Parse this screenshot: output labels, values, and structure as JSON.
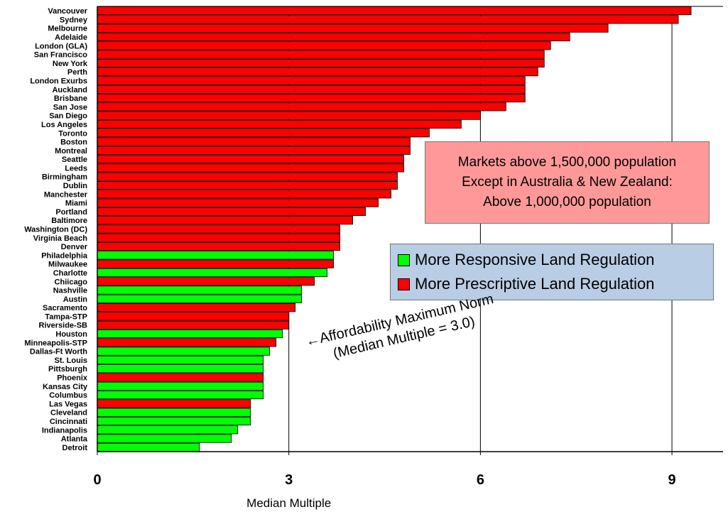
{
  "chart_data": {
    "type": "bar",
    "orientation": "horizontal",
    "title": "",
    "xlabel": "Median Multiple",
    "ylabel": "",
    "xlim": [
      0,
      9.8
    ],
    "xticks": [
      "0",
      "3",
      "6",
      "9"
    ],
    "grid": "vertical at 3, 6, 9",
    "categories": [
      "Vancouver",
      "Sydney",
      "Melbourne",
      "Adelaide",
      "London (GLA)",
      "San Francisco",
      "New York",
      "Perth",
      "London Exurbs",
      "Auckland",
      "Brisbane",
      "San Jose",
      "San Diego",
      "Los Angeles",
      "Toronto",
      "Boston",
      "Montreal",
      "Seattle",
      "Leeds",
      "Birmingham",
      "Dublin",
      "Manchester",
      "Miami",
      "Portland",
      "Baltimore",
      "Washington (DC)",
      "Virginia Beach",
      "Denver",
      "Philadelphia",
      "Milwaukee",
      "Charlotte",
      "Chiicago",
      "Nashville",
      "Austin",
      "Sacramento",
      "Tampa-STP",
      "Riverside-SB",
      "Houston",
      "Minneapolis-STP",
      "Dallas-Ft Worth",
      "St. Louis",
      "Pittsburgh",
      "Phoenix",
      "Kansas City",
      "Columbus",
      "Las Vegas",
      "Cleveland",
      "Cincinnati",
      "Indianapolis",
      "Atlanta",
      "Detroit"
    ],
    "values": [
      9.3,
      9.1,
      8.0,
      7.4,
      7.1,
      7.0,
      7.0,
      6.9,
      6.7,
      6.7,
      6.7,
      6.4,
      6.0,
      5.7,
      5.2,
      4.9,
      4.9,
      4.8,
      4.8,
      4.7,
      4.7,
      4.6,
      4.4,
      4.2,
      4.0,
      3.8,
      3.8,
      3.8,
      3.7,
      3.7,
      3.6,
      3.4,
      3.2,
      3.2,
      3.1,
      3.0,
      3.0,
      2.9,
      2.8,
      2.7,
      2.6,
      2.6,
      2.6,
      2.6,
      2.6,
      2.4,
      2.4,
      2.4,
      2.2,
      2.1,
      1.6
    ],
    "regulation": [
      "P",
      "P",
      "P",
      "P",
      "P",
      "P",
      "P",
      "P",
      "P",
      "P",
      "P",
      "P",
      "P",
      "P",
      "P",
      "P",
      "P",
      "P",
      "P",
      "P",
      "P",
      "P",
      "P",
      "P",
      "P",
      "P",
      "P",
      "P",
      "R",
      "P",
      "R",
      "P",
      "R",
      "R",
      "P",
      "P",
      "P",
      "R",
      "P",
      "R",
      "R",
      "R",
      "P",
      "R",
      "R",
      "P",
      "R",
      "R",
      "R",
      "R",
      "R"
    ],
    "colors": {
      "R": "#00ff00",
      "P": "#ff0000"
    },
    "legend": [
      {
        "key": "R",
        "label": "More Responsive Land Regulation"
      },
      {
        "key": "P",
        "label": "More Prescriptive Land Regulation"
      }
    ],
    "note_lines": [
      "Markets above 1,500,000 population",
      "Except in Australia & New Zealand:",
      "Above 1,000,000 population"
    ],
    "annotation_lines": [
      "←Affordability Maximum Norm",
      "(Median Multiple = 3.0)"
    ],
    "annotation_x": 3.0
  }
}
